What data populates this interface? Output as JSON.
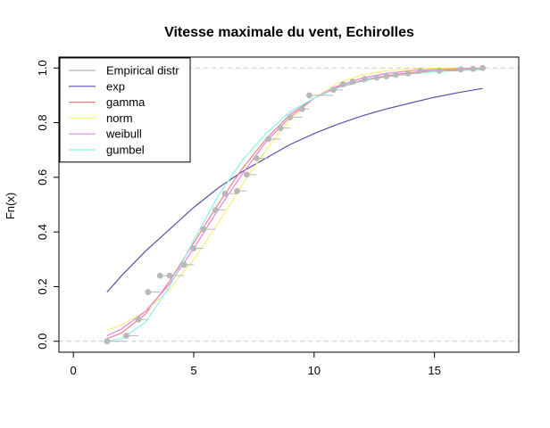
{
  "chart_data": {
    "type": "line",
    "title": "Vitesse maximale du vent, Echirolles",
    "xlabel": "",
    "ylabel": "Fn(x)",
    "xlim": [
      -0.6,
      18.5
    ],
    "ylim": [
      -0.04,
      1.04
    ],
    "x_ticks": [
      "0",
      "5",
      "10",
      "15"
    ],
    "y_ticks": [
      "0.0",
      "0.2",
      "0.4",
      "0.6",
      "0.8",
      "1.0"
    ],
    "x_tick_values": [
      0,
      5,
      10,
      15
    ],
    "y_tick_values": [
      0.0,
      0.2,
      0.4,
      0.6,
      0.8,
      1.0
    ],
    "reference_lines_y": [
      0,
      1
    ],
    "legend": {
      "placement": "top-left",
      "entries": [
        "Empirical distr",
        "exp",
        "gamma",
        "norm",
        "weibull",
        "gumbel"
      ]
    },
    "colors": {
      "empirical": "#b8b8b8",
      "exp": "#5a4fa8",
      "gamma": "#f08080",
      "norm": "#f5f07a",
      "weibull": "#e680e6",
      "gumbel": "#90f0ea",
      "reference": "#c8c8c8"
    },
    "empirical": {
      "x": [
        1.4,
        2.2,
        2.7,
        3.1,
        3.6,
        4.0,
        4.6,
        5.0,
        5.4,
        5.9,
        6.3,
        6.8,
        7.2,
        7.6,
        8.1,
        8.6,
        9.0,
        9.5,
        9.8,
        10.8,
        11.2,
        11.6,
        12.1,
        12.6,
        13.0,
        13.4,
        13.9,
        14.4,
        15.2,
        16.1,
        16.6,
        17.0
      ],
      "y": [
        0.0,
        0.02,
        0.08,
        0.18,
        0.24,
        0.24,
        0.28,
        0.34,
        0.41,
        0.48,
        0.54,
        0.55,
        0.61,
        0.67,
        0.74,
        0.78,
        0.82,
        0.85,
        0.9,
        0.92,
        0.94,
        0.95,
        0.96,
        0.965,
        0.97,
        0.975,
        0.98,
        0.99,
        0.99,
        0.995,
        0.997,
        1.0
      ]
    },
    "series": [
      {
        "name": "exp",
        "x": [
          1.4,
          2.0,
          3.0,
          4.0,
          5.0,
          6.0,
          7.0,
          8.0,
          9.0,
          10.0,
          11.0,
          12.0,
          13.0,
          14.0,
          15.0,
          16.0,
          17.0
        ],
        "y": [
          0.18,
          0.24,
          0.33,
          0.41,
          0.49,
          0.56,
          0.62,
          0.67,
          0.72,
          0.76,
          0.795,
          0.825,
          0.85,
          0.872,
          0.893,
          0.91,
          0.925
        ]
      },
      {
        "name": "gamma",
        "x": [
          1.4,
          2.0,
          3.0,
          4.0,
          5.0,
          6.0,
          7.0,
          8.0,
          9.0,
          10.0,
          11.0,
          12.0,
          13.0,
          14.0,
          15.0,
          16.0,
          17.0
        ],
        "y": [
          0.01,
          0.03,
          0.1,
          0.22,
          0.36,
          0.5,
          0.63,
          0.74,
          0.83,
          0.89,
          0.93,
          0.955,
          0.972,
          0.983,
          0.99,
          0.994,
          0.997
        ]
      },
      {
        "name": "norm",
        "x": [
          1.4,
          2.0,
          3.0,
          4.0,
          5.0,
          6.0,
          7.0,
          8.0,
          9.0,
          10.0,
          11.0,
          12.0,
          13.0,
          14.0,
          15.0,
          16.0,
          17.0
        ],
        "y": [
          0.04,
          0.06,
          0.11,
          0.19,
          0.3,
          0.43,
          0.57,
          0.7,
          0.81,
          0.89,
          0.945,
          0.975,
          0.99,
          0.996,
          0.999,
          1.0,
          1.0
        ]
      },
      {
        "name": "weibull",
        "x": [
          1.4,
          2.0,
          3.0,
          4.0,
          5.0,
          6.0,
          7.0,
          8.0,
          9.0,
          10.0,
          11.0,
          12.0,
          13.0,
          14.0,
          15.0,
          16.0,
          17.0
        ],
        "y": [
          0.02,
          0.045,
          0.11,
          0.21,
          0.34,
          0.48,
          0.61,
          0.73,
          0.82,
          0.89,
          0.935,
          0.963,
          0.98,
          0.99,
          0.995,
          0.998,
          0.999
        ]
      },
      {
        "name": "gumbel",
        "x": [
          1.4,
          2.0,
          3.0,
          4.0,
          5.0,
          6.0,
          7.0,
          8.0,
          9.0,
          10.0,
          11.0,
          12.0,
          13.0,
          14.0,
          15.0,
          16.0,
          17.0
        ],
        "y": [
          0.0,
          0.01,
          0.07,
          0.2,
          0.37,
          0.53,
          0.66,
          0.76,
          0.84,
          0.89,
          0.927,
          0.952,
          0.968,
          0.979,
          0.986,
          0.991,
          0.994
        ]
      }
    ]
  }
}
